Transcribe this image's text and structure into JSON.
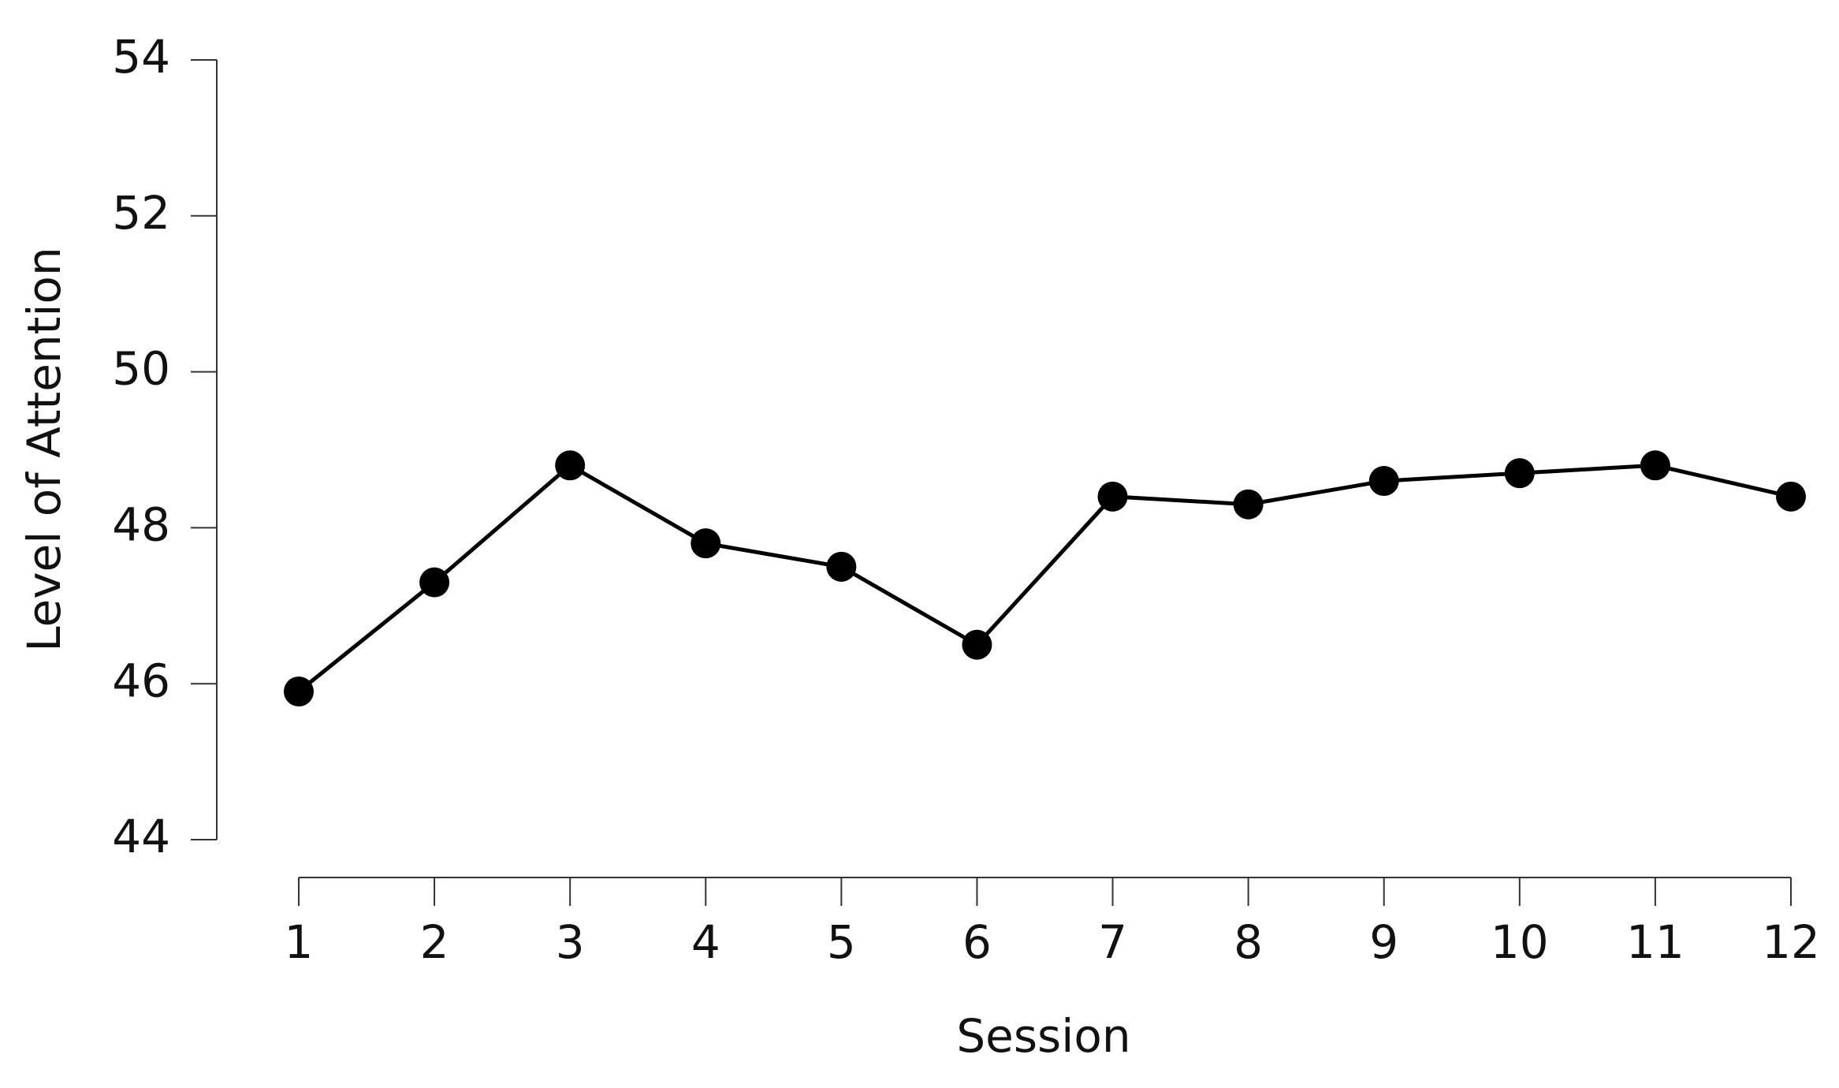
{
  "chart_data": {
    "type": "line",
    "x_label": "Session",
    "y_label": "Level of Attention",
    "x": [
      1,
      2,
      3,
      4,
      5,
      6,
      7,
      8,
      9,
      10,
      11,
      12
    ],
    "series": [
      {
        "color": "#000000",
        "values": [
          45.9,
          47.3,
          48.8,
          47.8,
          47.5,
          46.5,
          48.4,
          48.3,
          48.6,
          48.7,
          48.8,
          48.4
        ]
      }
    ],
    "xlim": [
      1,
      12
    ],
    "xticks": [
      1,
      2,
      3,
      4,
      5,
      6,
      7,
      8,
      9,
      10,
      11,
      12
    ],
    "ylim": [
      44,
      54
    ],
    "yticks": [
      44,
      46,
      48,
      50,
      52,
      54
    ]
  }
}
